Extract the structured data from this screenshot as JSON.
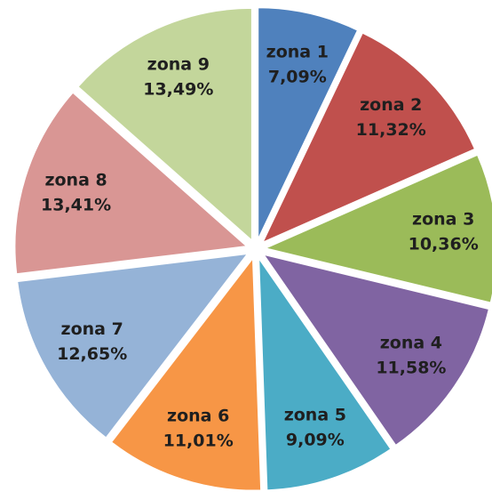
{
  "chart_data": {
    "type": "pie",
    "categories": [
      "zona 1",
      "zona 2",
      "zona 3",
      "zona 4",
      "zona 5",
      "zona 6",
      "zona 7",
      "zona 8",
      "zona 9"
    ],
    "values": [
      7.09,
      11.32,
      10.36,
      11.58,
      9.09,
      11.01,
      12.65,
      13.41,
      13.49
    ],
    "value_labels": [
      "7,09%",
      "11,32%",
      "10,36%",
      "11,58%",
      "9,09%",
      "11,01%",
      "12,65%",
      "13,41%",
      "13,49%"
    ],
    "colors": [
      "#4f81bd",
      "#c0504d",
      "#9bbb59",
      "#8064a2",
      "#4bacc6",
      "#f79646",
      "#95b3d7",
      "#d99694",
      "#c3d69b"
    ]
  }
}
